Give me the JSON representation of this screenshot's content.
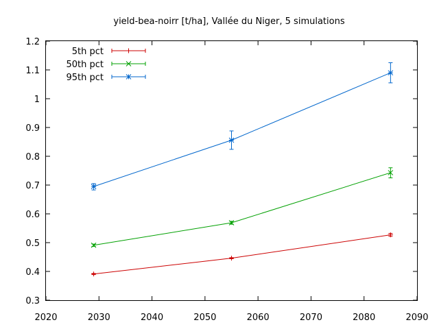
{
  "chart_data": {
    "type": "line",
    "title": "yield-bea-noirr [t/ha], Vallée du Niger, 5 simulations",
    "xlabel": "",
    "ylabel": "",
    "xlim": [
      2020,
      2090
    ],
    "ylim": [
      0.3,
      1.2
    ],
    "xticks": [
      2020,
      2030,
      2040,
      2050,
      2060,
      2070,
      2080,
      2090
    ],
    "yticks": [
      0.3,
      0.4,
      0.5,
      0.6,
      0.7,
      0.8,
      0.9,
      1,
      1.1,
      1.2
    ],
    "grid": false,
    "legend_position": "top-left",
    "series": [
      {
        "name": "5th pct",
        "color": "#cc0000",
        "marker": "plus",
        "x": [
          2029,
          2055,
          2085
        ],
        "y": [
          0.391,
          0.446,
          0.527
        ],
        "err_low": [
          0.389,
          0.444,
          0.522
        ],
        "err_high": [
          0.393,
          0.448,
          0.532
        ]
      },
      {
        "name": "50th pct",
        "color": "#00a000",
        "marker": "cross",
        "x": [
          2029,
          2055,
          2085
        ],
        "y": [
          0.491,
          0.569,
          0.743
        ],
        "err_low": [
          0.487,
          0.564,
          0.725
        ],
        "err_high": [
          0.495,
          0.574,
          0.76
        ]
      },
      {
        "name": "95th pct",
        "color": "#0066cc",
        "marker": "star",
        "x": [
          2029,
          2055,
          2085
        ],
        "y": [
          0.695,
          0.856,
          1.09
        ],
        "err_low": [
          0.683,
          0.824,
          1.055
        ],
        "err_high": [
          0.705,
          0.888,
          1.125
        ]
      }
    ]
  }
}
